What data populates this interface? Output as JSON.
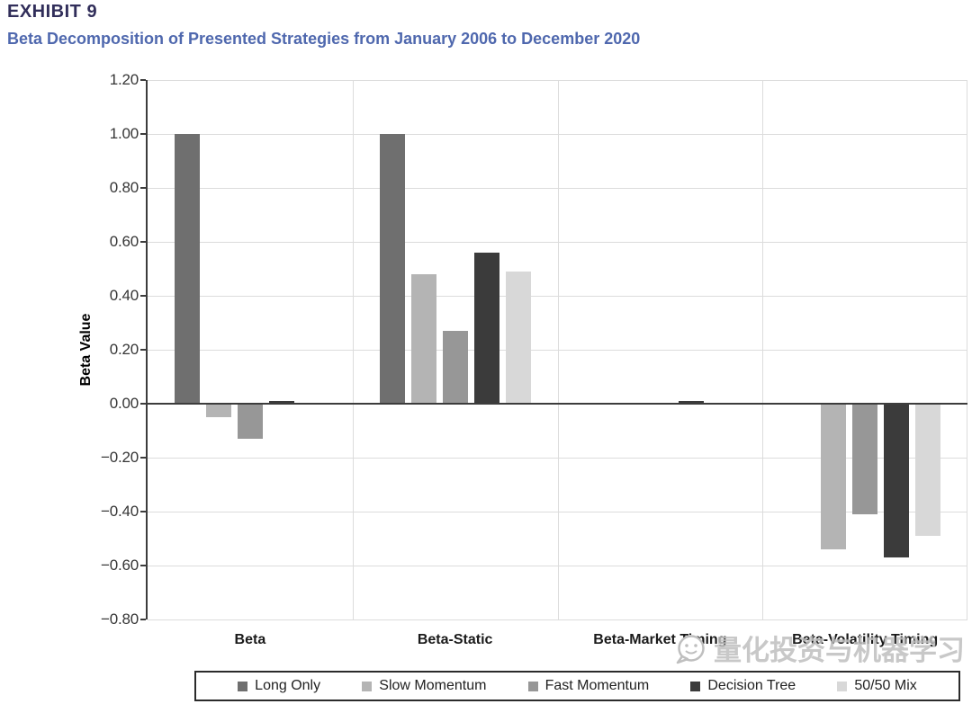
{
  "header": {
    "exhibit_label": "EXHIBIT 9",
    "subtitle": "Beta Decomposition of Presented Strategies from January 2006 to December 2020"
  },
  "chart_data": {
    "type": "bar",
    "title": "EXHIBIT 9",
    "subtitle": "Beta Decomposition of Presented Strategies from January 2006 to December 2020",
    "xlabel": "",
    "ylabel": "Beta Value",
    "ylim": [
      -0.8,
      1.2
    ],
    "ytick_step": 0.2,
    "grid": true,
    "legend_position": "bottom",
    "categories": [
      "Beta",
      "Beta-Static",
      "Beta-Market Timing",
      "Beta-Volatility Timing"
    ],
    "series": [
      {
        "name": "Long Only",
        "color": "#6f6f6f",
        "values": [
          1.0,
          1.0,
          0.0,
          0.0
        ]
      },
      {
        "name": "Slow Momentum",
        "color": "#b4b4b4",
        "values": [
          -0.05,
          0.48,
          0.005,
          -0.54
        ]
      },
      {
        "name": "Fast Momentum",
        "color": "#979797",
        "values": [
          -0.13,
          0.27,
          0.005,
          -0.41
        ]
      },
      {
        "name": "Decision Tree",
        "color": "#3b3b3b",
        "values": [
          0.01,
          0.56,
          0.01,
          -0.57
        ]
      },
      {
        "name": "50/50 Mix",
        "color": "#d8d8d8",
        "values": [
          0.0,
          0.49,
          0.0,
          -0.49
        ]
      }
    ]
  },
  "watermark": {
    "text": "量化投资与机器学习",
    "icon": "wechat-bubble-icon",
    "color": "#bfbfbf"
  },
  "colors": {
    "title": "#312e5a",
    "subtitle": "#4f68ae",
    "grid": "#dcdcdc",
    "axis": "#3c3c3c",
    "tick_text": "#363636"
  }
}
